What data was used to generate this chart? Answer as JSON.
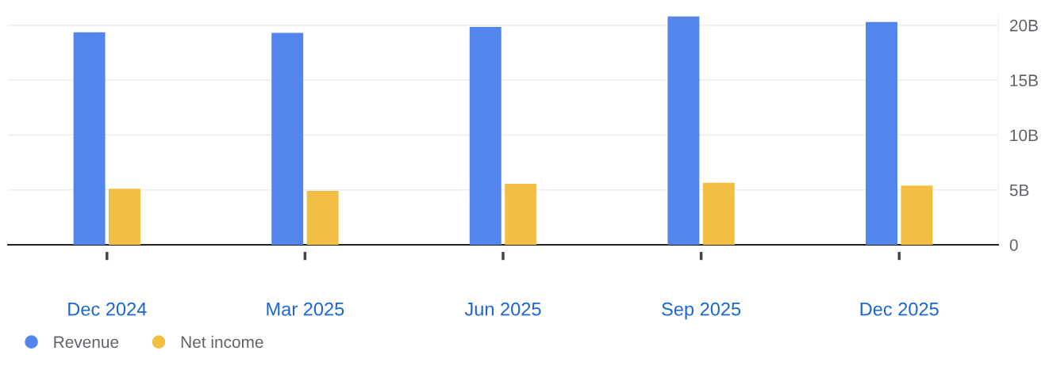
{
  "chart_data": {
    "type": "bar",
    "categories": [
      "Dec 2024",
      "Mar 2025",
      "Jun 2025",
      "Sep 2025",
      "Dec 2025"
    ],
    "series": [
      {
        "name": "Revenue",
        "color": "#5485ec",
        "values": [
          19.35,
          19.3,
          19.85,
          20.8,
          20.3
        ]
      },
      {
        "name": "Net income",
        "color": "#f2bf42",
        "values": [
          5.1,
          4.9,
          5.55,
          5.65,
          5.4
        ]
      }
    ],
    "ylim": [
      0,
      21
    ],
    "yticks": [
      {
        "value": 0,
        "label": "0"
      },
      {
        "value": 5,
        "label": "5B"
      },
      {
        "value": 10,
        "label": "10B"
      },
      {
        "value": 15,
        "label": "15B"
      },
      {
        "value": 20,
        "label": "20B"
      }
    ],
    "grid": "y",
    "legend": "bottom left"
  }
}
